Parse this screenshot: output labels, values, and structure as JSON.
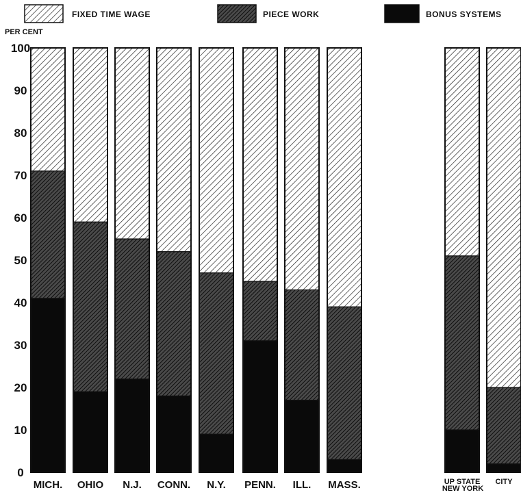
{
  "chart_data": {
    "type": "bar",
    "stacked": true,
    "percent": true,
    "ylabel": "PER CENT",
    "ylim": [
      0,
      100
    ],
    "yticks": [
      "0",
      "10",
      "20",
      "30",
      "40",
      "50",
      "60",
      "70",
      "80",
      "90",
      "100"
    ],
    "categories": [
      "MICH.",
      "OHIO",
      "N.J.",
      "CONN.",
      "N.Y.",
      "PENN.",
      "ILL.",
      "MASS.",
      "UP STATE",
      "CITY"
    ],
    "group_label": "NEW YORK",
    "legend": [
      "FIXED TIME WAGE",
      "PIECE WORK",
      "BONUS SYSTEMS"
    ],
    "legend_position": "top",
    "series": [
      {
        "name": "BONUS SYSTEMS",
        "values": [
          41,
          19,
          22,
          18,
          9,
          31,
          17,
          3,
          10,
          2
        ]
      },
      {
        "name": "PIECE WORK",
        "values": [
          30,
          40,
          33,
          34,
          38,
          14,
          26,
          36,
          41,
          18
        ]
      },
      {
        "name": "FIXED TIME WAGE",
        "values": [
          29,
          41,
          45,
          48,
          53,
          55,
          57,
          61,
          49,
          80
        ]
      }
    ]
  }
}
